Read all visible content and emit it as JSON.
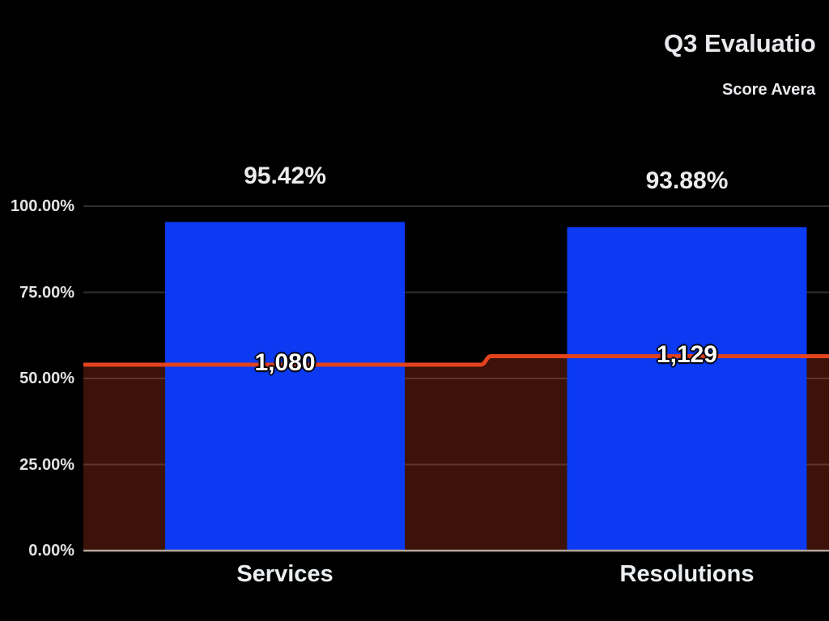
{
  "page": {
    "background": "#000000"
  },
  "chart": {
    "title": "Q3 Evaluatio",
    "legend": [
      {
        "label": "Score Avera",
        "color": "#0b3af2"
      }
    ]
  },
  "chart_data": {
    "type": "combo",
    "categories": [
      "Services",
      "Resolutions"
    ],
    "series": [
      {
        "name": "Score Avera",
        "type": "bar",
        "color": "#0b3af2",
        "values": [
          95.42,
          93.88
        ],
        "labels": [
          "95.42%",
          "93.88%"
        ]
      },
      {
        "name": "",
        "type": "stepped-line-area",
        "color": "#e2431e",
        "area_fill": "rgba(226,67,30,0.27)",
        "values": [
          1080,
          1129
        ],
        "labels": [
          "1,080",
          "1,129"
        ]
      }
    ],
    "y_axis": {
      "ticks": [
        "100.00%",
        "75.00%",
        "50.00%",
        "25.00%",
        "0.00%"
      ],
      "min": 0,
      "max": 1,
      "format": "percent"
    },
    "layout_hints": {
      "legend_position": "top-right",
      "title_position": "top-right",
      "grid": true,
      "gridline_color": "#2f2f2f",
      "baseline_color": "#b3a49a",
      "background": "#000000",
      "title_clipped_at_right_edge": true,
      "legend_clipped_at_right_edge": true
    }
  }
}
